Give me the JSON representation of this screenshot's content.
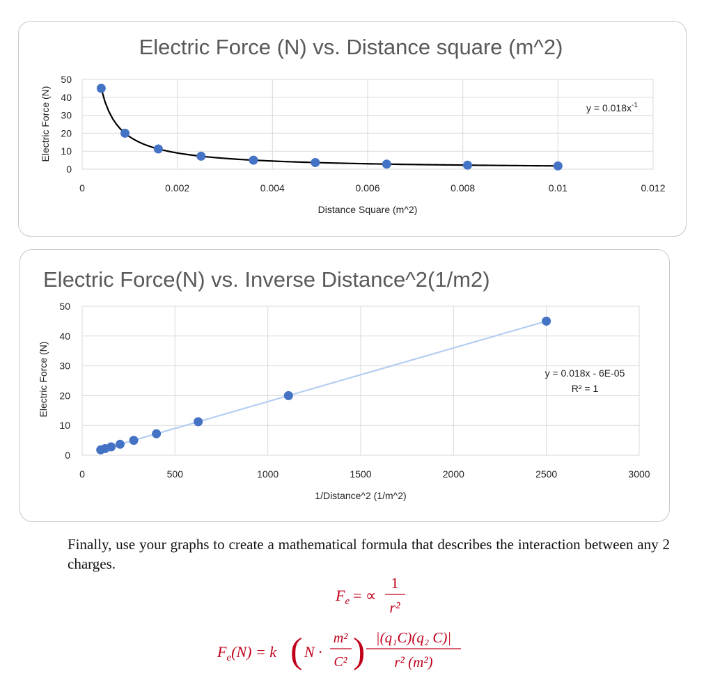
{
  "chart_data": [
    {
      "type": "scatter",
      "title": "Electric Force (N) vs. Distance square (m^2)",
      "xlabel": "Distance Square (m^2)",
      "ylabel": "Electric Force (N)",
      "xlim": [
        0,
        0.012
      ],
      "ylim": [
        0,
        50
      ],
      "xticks": [
        "0",
        "0.002",
        "0.004",
        "0.006",
        "0.008",
        "0.01",
        "0.012"
      ],
      "yticks": [
        "0",
        "10",
        "20",
        "30",
        "40",
        "50"
      ],
      "series": [
        {
          "name": "Electric Force",
          "x": [
            0.0004,
            0.0009,
            0.0016,
            0.0025,
            0.0036,
            0.0049,
            0.0064,
            0.0081,
            0.01
          ],
          "y": [
            45,
            20,
            11.25,
            7.2,
            5,
            3.67,
            2.81,
            2.22,
            1.8
          ]
        }
      ],
      "trendline": {
        "type": "power",
        "coef": 0.018,
        "exponent": -1,
        "equation_base": "y = 0.018x",
        "equation_sup": "-1"
      }
    },
    {
      "type": "scatter",
      "title": "Electric Force(N) vs. Inverse Distance^2(1/m2)",
      "xlabel": "1/Distance^2 (1/m^2)",
      "ylabel": "Electric Force (N)",
      "xlim": [
        0,
        3000
      ],
      "ylim": [
        0,
        50
      ],
      "xticks": [
        "0",
        "500",
        "1000",
        "1500",
        "2000",
        "2500",
        "3000"
      ],
      "yticks": [
        "0",
        "10",
        "20",
        "30",
        "40",
        "50"
      ],
      "series": [
        {
          "name": "Electric Force",
          "x": [
            100,
            123.5,
            156.3,
            204.1,
            277.8,
            400,
            625,
            1111.1,
            2500
          ],
          "y": [
            1.8,
            2.22,
            2.81,
            3.67,
            5,
            7.2,
            11.25,
            20,
            45
          ]
        }
      ],
      "trendline": {
        "type": "linear",
        "slope": 0.018,
        "intercept": -6e-05,
        "equation": "y = 0.018x - 6E-05",
        "r2": "R² = 1"
      }
    }
  ],
  "text": {
    "paragraph": "Finally, use your graphs to create a mathematical formula that describes the interaction between any 2 charges."
  },
  "formula1": {
    "lhs": "Fe",
    "rel": "= ∝",
    "num": "1",
    "den": "r²"
  },
  "formula2": {
    "lhs": "Fe(N) = k",
    "units_n": "N ·",
    "units_num": "m²",
    "units_den": "C²",
    "num": "|(q₁C)(q₂ C)|",
    "den": "r² (m²)"
  },
  "colors": {
    "point": "#4472c4",
    "line1": "#000000",
    "trend2": "#b4cef2",
    "grid": "#d9d9d9",
    "formula": "#c0001a"
  }
}
